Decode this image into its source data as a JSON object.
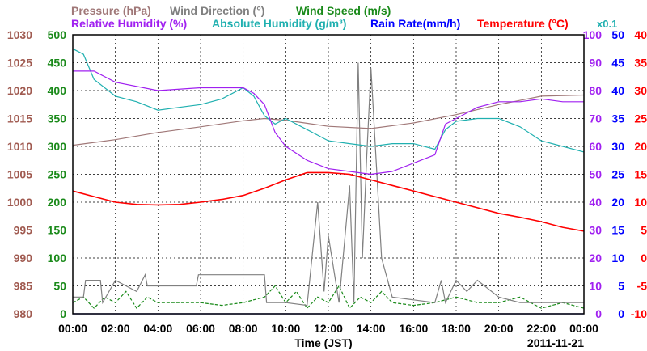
{
  "chart_data": {
    "type": "line",
    "date_label": "2011-11-21",
    "xlabel": "Time (JST)",
    "x_ticks": [
      "00:00",
      "02:00",
      "04:00",
      "06:00",
      "08:00",
      "10:00",
      "12:00",
      "14:00",
      "16:00",
      "18:00",
      "20:00",
      "22:00",
      "00:00"
    ],
    "legend_row1": {
      "pressure": "Pressure (hPa)",
      "wind_dir": "Wind Direction (°)",
      "wind_speed": "Wind Speed (m/s)"
    },
    "legend_row2": {
      "rel_hum": "Relative Humidity (%)",
      "abs_hum": "Absolute Humidity (g/m³)",
      "rain": "Rain Rate(mm/h)",
      "temp": "Temperature (°C)"
    },
    "abs_hum_scale_note": "x0.1",
    "axes": {
      "pressure": {
        "label_values": [
          "1030",
          "1025",
          "1020",
          "1015",
          "1010",
          "1005",
          "1000",
          "995",
          "990",
          "985",
          "980"
        ],
        "color": "#a05a50"
      },
      "wind_dir": {
        "label_values": [
          "500",
          "450",
          "400",
          "350",
          "300",
          "250",
          "200",
          "150",
          "100",
          "50",
          "0"
        ],
        "color": "#1a8a1a"
      },
      "humidity": {
        "label_values": [
          "100",
          "90",
          "80",
          "70",
          "60",
          "50",
          "40",
          "30",
          "20",
          "10",
          "0"
        ],
        "color": "#a020f0"
      },
      "rain": {
        "label_values": [
          "50",
          "45",
          "40",
          "35",
          "30",
          "25",
          "20",
          "15",
          "10",
          "5",
          "0"
        ],
        "color": "#0000ff"
      },
      "temp": {
        "label_values": [
          "40",
          "35",
          "30",
          "25",
          "20",
          "15",
          "10",
          "5",
          "0",
          "-5",
          "-10"
        ],
        "color": "#ff0000"
      }
    },
    "colors": {
      "pressure": "#a07878",
      "wind_dir": "#808080",
      "wind_speed": "#1a8a1a",
      "rel_hum": "#a020f0",
      "abs_hum": "#20b0b0",
      "rain": "#0000ff",
      "temp": "#ff0000"
    },
    "series": [
      {
        "key": "pressure",
        "hours": [
          0,
          2,
          4,
          6,
          8,
          9,
          10,
          12,
          14,
          16,
          18,
          20,
          22,
          24
        ],
        "values": [
          1010.2,
          1011.2,
          1012.5,
          1013.5,
          1014.6,
          1015.0,
          1014.7,
          1013.6,
          1013.2,
          1014.2,
          1015.7,
          1017.5,
          1019.0,
          1019.2
        ]
      },
      {
        "key": "rel_hum",
        "hours": [
          0,
          1,
          2,
          4,
          6,
          8,
          8.5,
          9,
          9.5,
          10,
          11,
          12,
          13,
          14,
          15,
          16,
          17,
          17.5,
          18,
          19,
          20,
          21,
          22,
          23,
          24
        ],
        "values": [
          87,
          87,
          83,
          80,
          81,
          81,
          79,
          75,
          65,
          60,
          55,
          52,
          51,
          50,
          51,
          54,
          57,
          68,
          70,
          74,
          76,
          76,
          77,
          76,
          76
        ]
      },
      {
        "key": "abs_hum",
        "hours": [
          0,
          0.5,
          1,
          2,
          3,
          4,
          5,
          6,
          7,
          8,
          8.5,
          9,
          9.5,
          10,
          11,
          12,
          13,
          14,
          15,
          16,
          17,
          17.5,
          18,
          19,
          20,
          21,
          22,
          23,
          24
        ],
        "values": [
          95,
          93,
          84,
          78,
          76,
          73,
          74,
          75,
          77,
          81,
          78,
          71,
          68,
          70,
          66,
          62,
          61,
          60,
          61,
          61,
          59,
          66,
          69,
          70,
          70,
          67,
          62,
          60,
          58
        ]
      },
      {
        "key": "temp",
        "hours": [
          0,
          1,
          2,
          3,
          4,
          5,
          6,
          7,
          8,
          9,
          10,
          11,
          12,
          13,
          14,
          15,
          16,
          17,
          18,
          19,
          20,
          21,
          22,
          23,
          24
        ],
        "values": [
          12.0,
          11.0,
          10.0,
          9.6,
          9.5,
          9.6,
          10.0,
          10.5,
          11.2,
          12.5,
          14.0,
          15.3,
          15.3,
          15.0,
          14.0,
          13.0,
          12.0,
          11.0,
          10.0,
          9.0,
          8.0,
          7.3,
          6.5,
          5.5,
          4.8
        ]
      },
      {
        "key": "wind_dir",
        "hours": [
          0,
          0.5,
          0.6,
          1.3,
          1.4,
          2,
          2.5,
          3,
          3.4,
          3.5,
          5.8,
          5.9,
          9,
          9.1,
          10,
          11,
          11.5,
          11.8,
          12,
          12.5,
          13,
          13.2,
          13.4,
          13.6,
          13.8,
          14,
          14.5,
          15,
          16,
          17,
          17.3,
          17.5,
          18,
          18.5,
          19,
          20,
          21,
          22,
          23,
          24
        ],
        "values": [
          30,
          30,
          60,
          60,
          20,
          60,
          50,
          40,
          70,
          50,
          50,
          70,
          70,
          20,
          20,
          15,
          200,
          40,
          140,
          20,
          230,
          20,
          450,
          100,
          280,
          440,
          100,
          30,
          25,
          20,
          60,
          20,
          60,
          40,
          60,
          30,
          20,
          20,
          20,
          20
        ]
      },
      {
        "key": "wind_speed",
        "hours": [
          0,
          0.5,
          1,
          1.5,
          2,
          2.5,
          3,
          3.5,
          4,
          5,
          6,
          7,
          8,
          9,
          9.5,
          10,
          10.5,
          11,
          11.5,
          12,
          12.5,
          13,
          13.5,
          14,
          14.5,
          15,
          16,
          17,
          18,
          19,
          20,
          21,
          22,
          23,
          24
        ],
        "values": [
          2,
          3,
          1,
          3,
          2,
          4,
          1,
          3,
          2,
          2,
          2,
          1.5,
          2,
          3,
          5,
          2,
          4,
          1,
          3,
          2,
          5,
          1,
          3,
          2,
          4,
          2,
          1.5,
          2,
          3,
          2,
          2,
          3,
          1,
          2,
          1
        ]
      },
      {
        "key": "rain",
        "hours": [
          0,
          24
        ],
        "values": [
          0,
          0
        ]
      }
    ]
  }
}
